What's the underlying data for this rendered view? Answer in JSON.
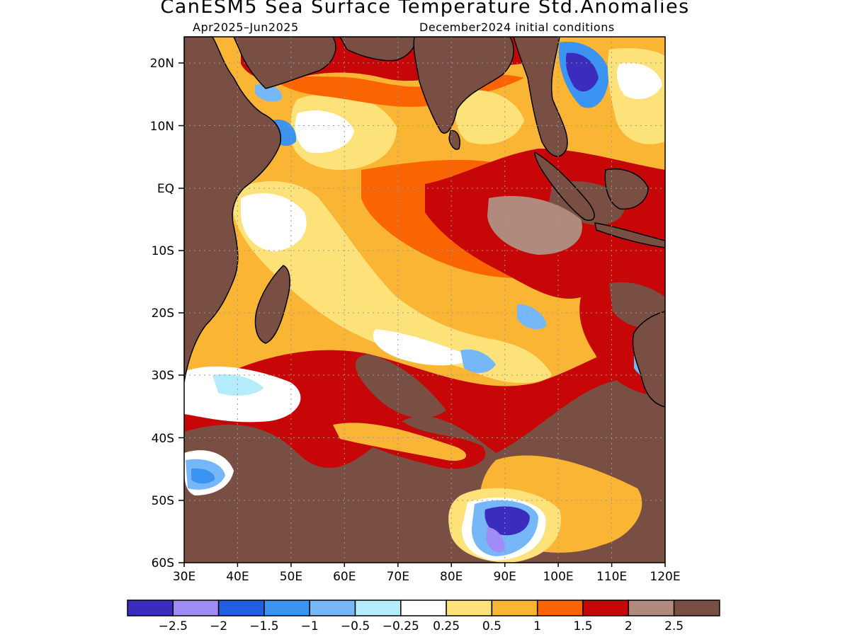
{
  "title": "CanESM5 Sea Surface Temperature Std.Anomalies",
  "subtitle_left": "Apr2025–Jun2025",
  "subtitle_right": "December2024 initial conditions",
  "map": {
    "lon_range": [
      30,
      120
    ],
    "lat_range": [
      -60,
      24
    ],
    "x_ticks": [
      "30E",
      "40E",
      "50E",
      "60E",
      "70E",
      "80E",
      "90E",
      "100E",
      "110E",
      "120E"
    ],
    "y_ticks": [
      "20N",
      "10N",
      "EQ",
      "10S",
      "20S",
      "30S",
      "40S",
      "50S",
      "60S"
    ],
    "grid": true,
    "grid_style": "dotted"
  },
  "colorbar": {
    "colors": [
      "#3a2dbd",
      "#9f8cf5",
      "#1f5fe0",
      "#3b93f2",
      "#76b8f7",
      "#b4ecfb",
      "#ffffff",
      "#fde27a",
      "#fbb535",
      "#fb6501",
      "#c70608",
      "#b08a7c",
      "#7a4f43"
    ],
    "labels": [
      "−2.5",
      "−2",
      "−1.5",
      "−1",
      "−0.5",
      "−0.25",
      "0.25",
      "0.5",
      "1",
      "1.5",
      "2",
      "2.5"
    ]
  }
}
